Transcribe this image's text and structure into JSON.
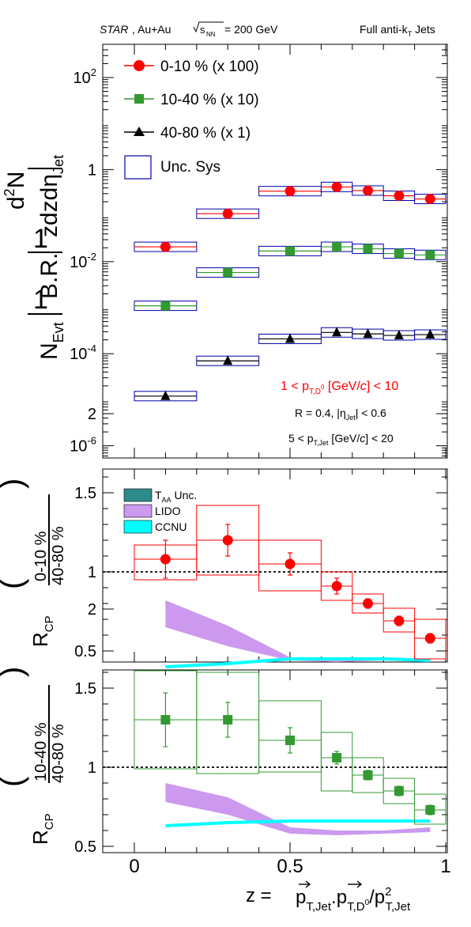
{
  "header": {
    "experiment": "STAR",
    "system": ", Au+Au",
    "energy_value": "= 200 GeV",
    "jet_label": "Full anti-k",
    "jet_label_sub": "T",
    "jet_label_tail": " Jets"
  },
  "colors": {
    "central": "#ff0000",
    "mid": "#339933",
    "peripheral": "#000000",
    "sys_box": "#0000aa",
    "taa": "#2e8b8b",
    "lido": "#cc99ee",
    "ccnu": "#00ffff"
  },
  "chart_data": [
    {
      "type": "scatter",
      "panel": "top",
      "yscale": "log",
      "ylim": [
        3e-07,
        500
      ],
      "xlim": [
        -0.1,
        1.0
      ],
      "ylabel": "1/N_Evt 1/B.R. d2N/zdzdη_Jet",
      "ytick_labels": [
        "10^2",
        "1",
        "10^-2",
        "10^-4",
        "10^-6"
      ],
      "bin_edges": [
        0,
        0.2,
        0.4,
        0.6,
        0.7,
        0.8,
        0.9,
        1.0
      ],
      "x": [
        0.1,
        0.3,
        0.5,
        0.65,
        0.75,
        0.85,
        0.95
      ],
      "series": [
        {
          "name": "0-10 % (x 100)",
          "marker": "circle",
          "values": [
            0.021,
            0.11,
            0.34,
            0.42,
            0.35,
            0.27,
            0.23
          ]
        },
        {
          "name": "10-40 % (x 10)",
          "marker": "square",
          "values": [
            0.0011,
            0.0058,
            0.017,
            0.021,
            0.019,
            0.015,
            0.014
          ]
        },
        {
          "name": "40-80 % (x 1)",
          "marker": "triangle",
          "values": [
            1.2e-05,
            7e-05,
            0.00021,
            0.00029,
            0.00027,
            0.00025,
            0.00026
          ]
        }
      ],
      "legend": [
        "0-10 % (x 100)",
        "10-40 % (x 10)",
        "40-80 % (x 1)",
        "Unc. Sys"
      ],
      "annotations": {
        "d0_range": "1 < p_T,D0 [GeV/c] < 10",
        "radius": "R = 0.4, |η_Jet| < 0.6",
        "jet_range": "5 < p_T,Jet [GeV/c] < 20"
      }
    },
    {
      "type": "scatter",
      "panel": "middle",
      "ylabel": "R_CP (0-10 % / 40-80 %)",
      "ylim": [
        0,
        2.1
      ],
      "yticks": [
        "0.5",
        "1",
        "1.5",
        "2"
      ],
      "x": [
        0.1,
        0.3,
        0.5,
        0.65,
        0.75,
        0.85,
        0.95
      ],
      "values": [
        1.08,
        1.2,
        1.05,
        0.91,
        0.8,
        0.69,
        0.58
      ],
      "stat_err": [
        0.12,
        0.1,
        0.07,
        0.05,
        0.03,
        0.03,
        0.03
      ],
      "sys_low": [
        0.95,
        0.98,
        0.88,
        0.82,
        0.74,
        0.62,
        0.45
      ],
      "sys_high": [
        1.17,
        1.42,
        1.2,
        1.0,
        0.86,
        0.77,
        0.7
      ],
      "legend": [
        "T_AA Unc.",
        "LIDO",
        "CCNU"
      ],
      "lido": {
        "x": [
          0.1,
          0.3,
          0.5,
          0.65,
          0.8,
          0.95
        ],
        "low": [
          0.65,
          0.53,
          0.44,
          0.43,
          0.44,
          0.43
        ],
        "high": [
          0.82,
          0.66,
          0.46,
          0.46,
          0.46,
          0.45
        ]
      },
      "ccnu": {
        "x": [
          0.1,
          0.3,
          0.5,
          0.65,
          0.8,
          0.95
        ],
        "values": [
          0.4,
          0.42,
          0.45,
          0.45,
          0.45,
          0.44
        ]
      }
    },
    {
      "type": "scatter",
      "panel": "bottom",
      "ylabel": "R_CP (10-40 % / 40-80 %)",
      "ylim": [
        0,
        2.1
      ],
      "yticks": [
        "0.5",
        "1",
        "1.5",
        "2"
      ],
      "xlabel": "z = p_T,Jet · p_T,D0 / p^2_T,Jet",
      "xticks": [
        "0",
        "0.5",
        "1"
      ],
      "x": [
        0.1,
        0.3,
        0.5,
        0.65,
        0.75,
        0.85,
        0.95
      ],
      "values": [
        1.3,
        1.3,
        1.17,
        1.06,
        0.95,
        0.85,
        0.73
      ],
      "stat_err": [
        0.17,
        0.11,
        0.08,
        0.04,
        0.03,
        0.03,
        0.03
      ],
      "sys_low": [
        0.99,
        0.96,
        0.97,
        0.85,
        0.84,
        0.77,
        0.64
      ],
      "sys_high": [
        1.61,
        1.6,
        1.42,
        1.22,
        1.06,
        0.93,
        0.83
      ],
      "lido": {
        "x": [
          0.1,
          0.3,
          0.5,
          0.65,
          0.8,
          0.95
        ],
        "low": [
          0.78,
          0.7,
          0.58,
          0.57,
          0.58,
          0.59
        ],
        "high": [
          0.9,
          0.81,
          0.62,
          0.6,
          0.6,
          0.62
        ]
      },
      "ccnu": {
        "x": [
          0.1,
          0.3,
          0.5,
          0.65,
          0.8,
          0.95
        ],
        "values": [
          0.63,
          0.65,
          0.66,
          0.66,
          0.66,
          0.66
        ]
      }
    }
  ]
}
